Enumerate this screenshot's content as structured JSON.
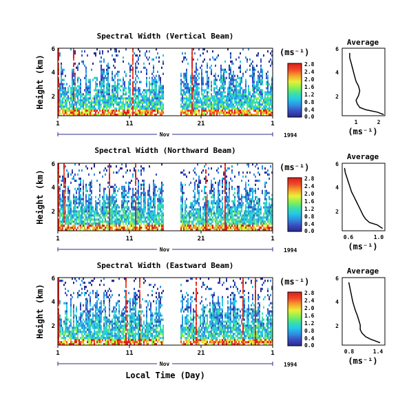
{
  "chart_data": [
    {
      "type": "heatmap",
      "title": "Spectral Width (Vertical Beam)",
      "ylabel": "Height (km)",
      "yticks": [
        "6",
        "4",
        "2"
      ],
      "ylim": [
        0.5,
        6
      ],
      "xticks": [
        "1",
        "11",
        "21",
        "1"
      ],
      "xlim": [
        1,
        31
      ],
      "month_label": "Nov",
      "year_label": "1994",
      "data_gap": [
        15.8,
        18
      ],
      "colorbar": {
        "unit": "(ms⁻¹)",
        "ticks": [
          "2.8",
          "2.4",
          "2.0",
          "1.6",
          "1.2",
          "0.8",
          "0.4",
          "0.0"
        ],
        "range": [
          0,
          2.8
        ]
      },
      "average": {
        "title": "Average",
        "xlabel": "(ms⁻¹)",
        "xticks": [
          "1",
          "2"
        ],
        "xlim": [
          0.6,
          2.3
        ],
        "yticks": [
          "6",
          "4",
          "2"
        ],
        "ylim": [
          0.3,
          6
        ],
        "height_km": [
          0.4,
          0.6,
          0.8,
          1.0,
          1.3,
          1.6,
          2.0,
          2.4,
          2.8,
          3.2,
          3.6,
          4.0,
          4.4,
          4.8,
          5.2,
          5.6
        ],
        "width": [
          2.25,
          2.0,
          1.55,
          1.3,
          1.2,
          1.15,
          1.25,
          1.3,
          1.25,
          1.15,
          1.1,
          1.05,
          1.0,
          0.95,
          0.9,
          0.9
        ]
      }
    },
    {
      "type": "heatmap",
      "title": "Spectral Width (Northward Beam)",
      "ylabel": "Height (km)",
      "yticks": [
        "6",
        "4",
        "2"
      ],
      "ylim": [
        0.5,
        6
      ],
      "xticks": [
        "1",
        "11",
        "21",
        "1"
      ],
      "xlim": [
        1,
        31
      ],
      "month_label": "Nov",
      "year_label": "1994",
      "data_gap": [
        15.8,
        18
      ],
      "colorbar": {
        "unit": "(ms⁻¹)",
        "ticks": [
          "2.8",
          "2.4",
          "2.0",
          "1.6",
          "1.2",
          "0.8",
          "0.4",
          "0.0"
        ],
        "range": [
          0,
          2.8
        ]
      },
      "average": {
        "title": "Average",
        "xlabel": "(ms⁻¹)",
        "xticks": [
          "0.6",
          "1.0"
        ],
        "xlim": [
          0.5,
          1.05
        ],
        "yticks": [
          "6",
          "4",
          "2"
        ],
        "ylim": [
          0.3,
          6
        ],
        "height_km": [
          0.5,
          0.8,
          1.0,
          1.3,
          1.6,
          2.0,
          2.4,
          2.8,
          3.2,
          3.6,
          4.0,
          4.4,
          4.8,
          5.2,
          5.6
        ],
        "width": [
          1.02,
          0.95,
          0.85,
          0.8,
          0.77,
          0.74,
          0.71,
          0.68,
          0.65,
          0.62,
          0.6,
          0.58,
          0.56,
          0.54,
          0.53
        ]
      }
    },
    {
      "type": "heatmap",
      "title": "Spectral Width (Eastward Beam)",
      "ylabel": "Height (km)",
      "yticks": [
        "6",
        "4",
        "2"
      ],
      "ylim": [
        0.5,
        6
      ],
      "xticks": [
        "1",
        "11",
        "21",
        "1"
      ],
      "xlim": [
        1,
        31
      ],
      "month_label": "Nov",
      "year_label": "1994",
      "data_gap": [
        15.8,
        18
      ],
      "colorbar": {
        "unit": "(ms⁻¹)",
        "ticks": [
          "2.8",
          "2.4",
          "2.0",
          "1.6",
          "1.2",
          "0.8",
          "0.4",
          "0.0"
        ],
        "range": [
          0,
          2.8
        ]
      },
      "average": {
        "title": "Average",
        "xlabel": "(ms⁻¹)",
        "xticks": [
          "0.8",
          "1.4"
        ],
        "xlim": [
          0.6,
          1.5
        ],
        "yticks": [
          "6",
          "4",
          "2"
        ],
        "ylim": [
          0.3,
          6
        ],
        "height_km": [
          0.5,
          0.8,
          1.0,
          1.3,
          1.6,
          2.0,
          2.4,
          2.8,
          3.2,
          3.6,
          4.0,
          4.4,
          4.8,
          5.2,
          5.6
        ],
        "width": [
          1.4,
          1.2,
          1.1,
          1.02,
          0.98,
          0.98,
          0.95,
          0.92,
          0.88,
          0.85,
          0.82,
          0.8,
          0.78,
          0.76,
          0.74
        ]
      }
    }
  ],
  "xlabel": "Local Time (Day)",
  "colors": {
    "scale": [
      "#2a2a8c",
      "#3b4cc0",
      "#2f8fe0",
      "#25c8e8",
      "#3fe0a0",
      "#8ef050",
      "#e8f03a",
      "#f7a32b",
      "#f04a2a",
      "#d9201a"
    ]
  }
}
